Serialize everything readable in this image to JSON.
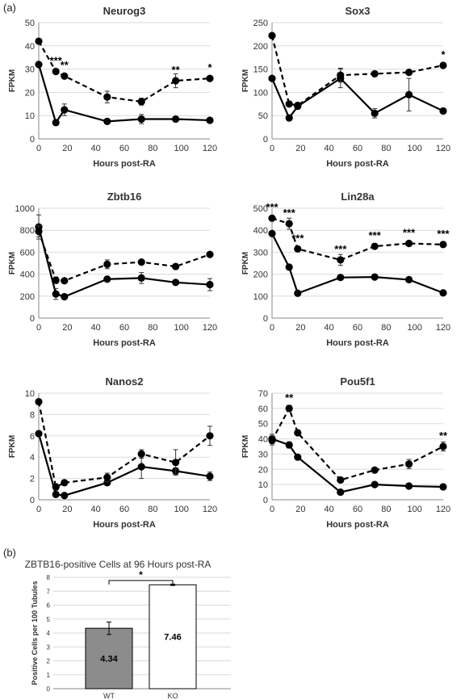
{
  "panel_labels": {
    "a": "(a)",
    "b": "(b)"
  },
  "chart_data": [
    {
      "type": "line",
      "title": "Neurog3",
      "xlabel": "Hours post-RA",
      "ylabel": "FPKM",
      "xlim": [
        0,
        120
      ],
      "ylim": [
        0,
        50
      ],
      "xticks": [
        0,
        20,
        40,
        60,
        80,
        100,
        120
      ],
      "yticks": [
        0,
        10,
        20,
        30,
        40,
        50
      ],
      "grid": "horizontal",
      "series": [
        {
          "style": "solid",
          "x": [
            0,
            12,
            18,
            48,
            72,
            96,
            120
          ],
          "y": [
            32,
            7,
            12.5,
            7.5,
            8.5,
            8.5,
            8
          ],
          "err": [
            0,
            0.5,
            2.5,
            0.5,
            2,
            0.5,
            0.5
          ]
        },
        {
          "style": "dashed",
          "x": [
            0,
            12,
            18,
            48,
            72,
            96,
            120
          ],
          "y": [
            42,
            29,
            27,
            18,
            16,
            25,
            26
          ],
          "err": [
            0,
            0.5,
            1,
            2.5,
            1.5,
            3,
            1
          ]
        }
      ],
      "annotations": [
        {
          "x": 12,
          "y": 29,
          "text": "***"
        },
        {
          "x": 18,
          "y": 27,
          "text": "**"
        },
        {
          "x": 96,
          "y": 25,
          "text": "**"
        },
        {
          "x": 120,
          "y": 26,
          "text": "*"
        }
      ]
    },
    {
      "type": "line",
      "title": "Sox3",
      "xlabel": "Hours post-RA",
      "ylabel": "FPKM",
      "xlim": [
        0,
        120
      ],
      "ylim": [
        0,
        250
      ],
      "xticks": [
        0,
        20,
        40,
        60,
        80,
        100,
        120
      ],
      "yticks": [
        0,
        50,
        100,
        150,
        200,
        250
      ],
      "grid": "horizontal",
      "series": [
        {
          "style": "solid",
          "x": [
            0,
            12,
            18,
            48,
            72,
            96,
            120
          ],
          "y": [
            130,
            45,
            70,
            130,
            55,
            95,
            60
          ],
          "err": [
            0,
            3,
            5,
            20,
            10,
            35,
            3
          ]
        },
        {
          "style": "dashed",
          "x": [
            0,
            12,
            18,
            48,
            72,
            96,
            120
          ],
          "y": [
            222,
            75,
            72,
            137,
            140,
            143,
            158
          ],
          "err": [
            5,
            5,
            5,
            15,
            3,
            5,
            3
          ]
        }
      ],
      "annotations": [
        {
          "x": 120,
          "y": 158,
          "text": "*"
        }
      ]
    },
    {
      "type": "line",
      "title": "Zbtb16",
      "xlabel": "Hours post-RA",
      "ylabel": "FPKM",
      "xlim": [
        0,
        120
      ],
      "ylim": [
        0,
        1000
      ],
      "xticks": [
        0,
        20,
        40,
        60,
        80,
        100,
        120
      ],
      "yticks": [
        0,
        200,
        400,
        600,
        800,
        1000
      ],
      "grid": "horizontal",
      "series": [
        {
          "style": "solid",
          "x": [
            0,
            12,
            18,
            48,
            72,
            96,
            120
          ],
          "y": [
            830,
            220,
            195,
            355,
            365,
            325,
            305
          ],
          "err": [
            110,
            50,
            10,
            20,
            50,
            20,
            55
          ]
        },
        {
          "style": "dashed",
          "x": [
            0,
            12,
            18,
            48,
            72,
            96,
            120
          ],
          "y": [
            790,
            345,
            340,
            490,
            510,
            470,
            580
          ],
          "err": [
            50,
            30,
            10,
            40,
            15,
            20,
            15
          ]
        }
      ],
      "annotations": []
    },
    {
      "type": "line",
      "title": "Lin28a",
      "xlabel": "Hours post-RA",
      "ylabel": "FPKM",
      "xlim": [
        0,
        120
      ],
      "ylim": [
        0,
        500
      ],
      "xticks": [
        0,
        20,
        40,
        60,
        80,
        100,
        120
      ],
      "yticks": [
        0,
        100,
        200,
        300,
        400,
        500
      ],
      "grid": "horizontal",
      "series": [
        {
          "style": "solid",
          "x": [
            0,
            12,
            18,
            48,
            72,
            96,
            120
          ],
          "y": [
            385,
            232,
            113,
            185,
            187,
            175,
            115
          ],
          "err": [
            5,
            5,
            5,
            5,
            10,
            5,
            5
          ]
        },
        {
          "style": "dashed",
          "x": [
            0,
            12,
            18,
            48,
            72,
            96,
            120
          ],
          "y": [
            455,
            430,
            315,
            265,
            327,
            340,
            335
          ],
          "err": [
            10,
            25,
            10,
            25,
            10,
            5,
            10
          ]
        }
      ],
      "annotations": [
        {
          "x": 0,
          "y": 455,
          "text": "***"
        },
        {
          "x": 12,
          "y": 430,
          "text": "***"
        },
        {
          "x": 18,
          "y": 315,
          "text": "***"
        },
        {
          "x": 48,
          "y": 265,
          "text": "***"
        },
        {
          "x": 72,
          "y": 327,
          "text": "***"
        },
        {
          "x": 96,
          "y": 340,
          "text": "***"
        },
        {
          "x": 120,
          "y": 335,
          "text": "***"
        }
      ]
    },
    {
      "type": "line",
      "title": "Nanos2",
      "xlabel": "Hours post-RA",
      "ylabel": "FPKM",
      "xlim": [
        0,
        120
      ],
      "ylim": [
        0,
        10
      ],
      "xticks": [
        0,
        20,
        40,
        60,
        80,
        100,
        120
      ],
      "yticks": [
        0,
        2,
        4,
        6,
        8,
        10
      ],
      "grid": "horizontal",
      "series": [
        {
          "style": "solid",
          "x": [
            0,
            12,
            18,
            48,
            72,
            96,
            120
          ],
          "y": [
            6.2,
            0.5,
            0.4,
            1.6,
            3.1,
            2.7,
            2.2
          ],
          "err": [
            0.1,
            0.2,
            0.1,
            0.2,
            1.1,
            0.3,
            0.4
          ]
        },
        {
          "style": "dashed",
          "x": [
            0,
            12,
            18,
            48,
            72,
            96,
            120
          ],
          "y": [
            9.2,
            1.2,
            1.6,
            2.1,
            4.3,
            3.5,
            6.0
          ],
          "err": [
            0.1,
            0.3,
            0.2,
            0.4,
            0.4,
            1.2,
            0.9
          ]
        }
      ],
      "annotations": []
    },
    {
      "type": "line",
      "title": "Pou5f1",
      "xlabel": "Hours post-RA",
      "ylabel": "FPKM",
      "xlim": [
        0,
        120
      ],
      "ylim": [
        0,
        70
      ],
      "xticks": [
        0,
        20,
        40,
        60,
        80,
        100,
        120
      ],
      "yticks": [
        0,
        10,
        20,
        30,
        40,
        50,
        60,
        70
      ],
      "grid": "horizontal",
      "series": [
        {
          "style": "solid",
          "x": [
            0,
            12,
            18,
            48,
            72,
            96,
            120
          ],
          "y": [
            40,
            36,
            28,
            5,
            10,
            9,
            8.5
          ],
          "err": [
            3,
            2,
            0.5,
            0.5,
            0.5,
            0.5,
            0.5
          ]
        },
        {
          "style": "dashed",
          "x": [
            0,
            12,
            18,
            48,
            72,
            96,
            120
          ],
          "y": [
            39,
            60,
            44,
            13,
            19.5,
            23.5,
            35
          ],
          "err": [
            3,
            2,
            1,
            1,
            1.5,
            3,
            3
          ]
        }
      ],
      "annotations": [
        {
          "x": 12,
          "y": 60,
          "text": "**"
        },
        {
          "x": 120,
          "y": 35,
          "text": "**"
        }
      ]
    },
    {
      "type": "bar",
      "title": "ZBTB16-positive Cells at 96 Hours post-RA",
      "ylabel": "Positive Cells per 100 Tubules",
      "xlabel": "",
      "categories": [
        "WT",
        "KO"
      ],
      "values": [
        4.34,
        7.46
      ],
      "value_labels": [
        "4.34",
        "7.46"
      ],
      "err": [
        0.45,
        0.05
      ],
      "bar_colors": [
        "#8c8c8c",
        "#ffffff"
      ],
      "ylim": [
        0,
        8
      ],
      "yticks": [
        0,
        1,
        2,
        3,
        4,
        5,
        6,
        7,
        8
      ],
      "grid": "horizontal",
      "significance": "*"
    }
  ]
}
